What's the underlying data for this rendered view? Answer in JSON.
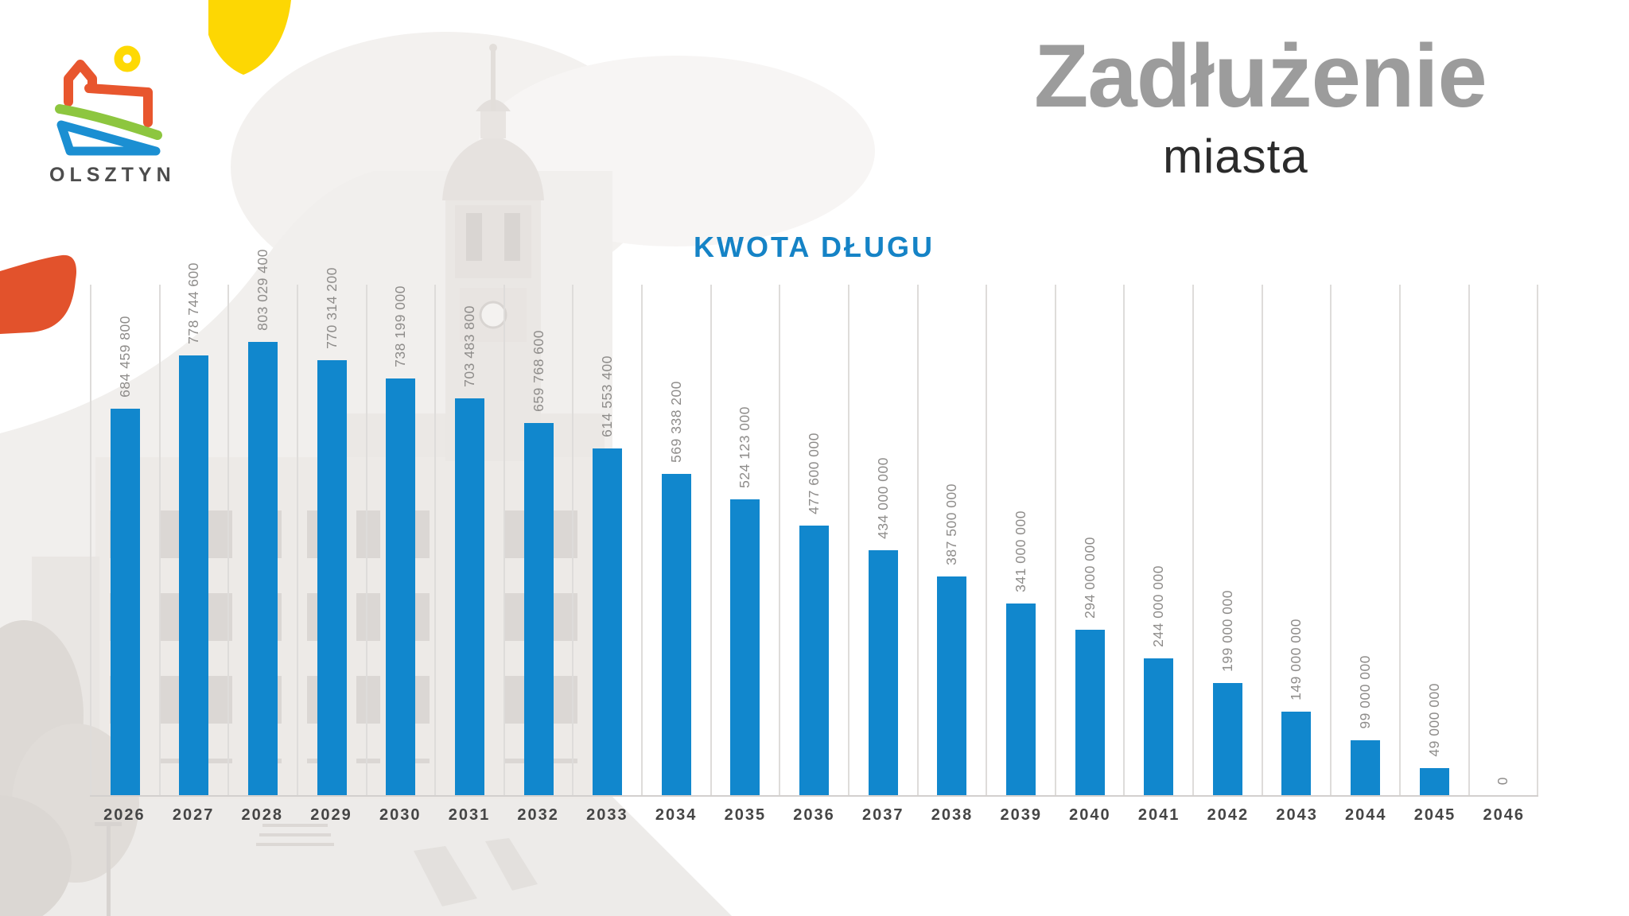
{
  "logo": {
    "city": "OLSZTYN"
  },
  "header": {
    "title": "Zadłużenie",
    "subtitle": "miasta"
  },
  "chart_data": {
    "type": "bar",
    "title": "KWOTA DŁUGU",
    "categories": [
      "2026",
      "2027",
      "2028",
      "2029",
      "2030",
      "2031",
      "2032",
      "2033",
      "2034",
      "2035",
      "2036",
      "2037",
      "2038",
      "2039",
      "2040",
      "2041",
      "2042",
      "2043",
      "2044",
      "2045",
      "2046"
    ],
    "values": [
      684459800,
      778744600,
      803029400,
      770314200,
      738199000,
      703483800,
      659768600,
      614553400,
      569338200,
      524123000,
      477600000,
      434000000,
      387500000,
      341000000,
      294000000,
      244000000,
      199000000,
      149000000,
      99000000,
      49000000,
      0
    ],
    "value_labels": [
      "684 459 800",
      "778 744 600",
      "803 029 400",
      "770 314 200",
      "738 199 000",
      "703 483 800",
      "659 768 600",
      "614 553 400",
      "569 338 200",
      "524 123 000",
      "477 600 000",
      "434 000 000",
      "387 500 000",
      "341 000 000",
      "294 000 000",
      "244 000 000",
      "199 000 000",
      "149 000 000",
      "99 000 000",
      "49 000 000",
      "0"
    ],
    "ylim": [
      0,
      850000000
    ],
    "xlabel": "",
    "ylabel": "",
    "legend": "none",
    "grid": "vertical-column-separators"
  },
  "colors": {
    "bar_blue": "#1187cd",
    "chart_title_blue": "#1583c6",
    "title_gray": "#9c9c9c",
    "grid_gray": "#dedcda",
    "blob_yellow": "#fdd703",
    "blob_orange": "#e2522c",
    "logo_orange": "#e8562e",
    "logo_green": "#8dc63f",
    "logo_blue": "#1b8fd2",
    "logo_yellow": "#fed903"
  }
}
